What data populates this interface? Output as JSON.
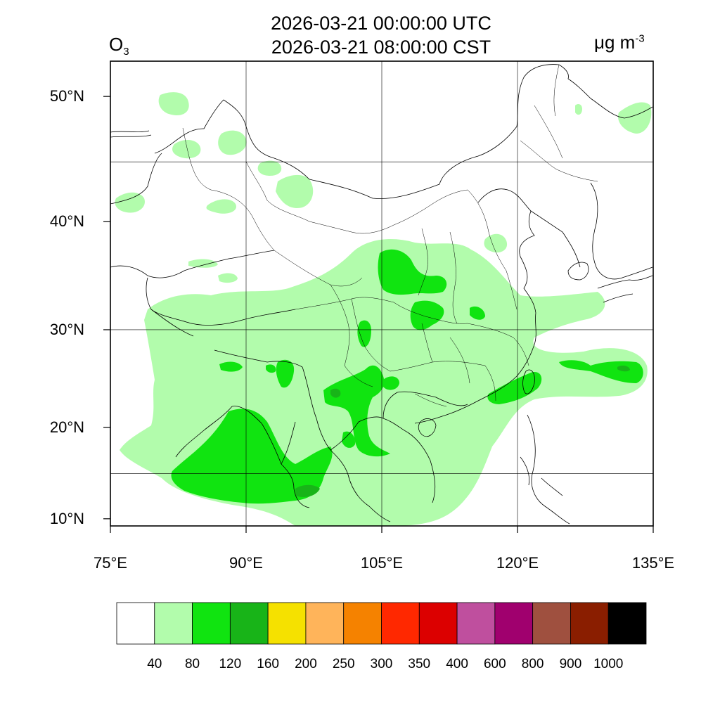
{
  "title": {
    "utc": "2026-03-21 00:00:00 UTC",
    "local": "2026-03-21 08:00:00 CST"
  },
  "variable": {
    "name": "O",
    "subscript": "3"
  },
  "unit": {
    "base": "μg m",
    "exponent": "-3"
  },
  "map": {
    "lon_range": [
      75,
      135
    ],
    "lat_range": [
      9.2,
      52.5
    ],
    "lat_ticks": [
      {
        "value": 10,
        "label": "10°N"
      },
      {
        "value": 20,
        "label": "20°N"
      },
      {
        "value": 30,
        "label": "30°N"
      },
      {
        "value": 40,
        "label": "40°N"
      },
      {
        "value": 50,
        "label": "50°N"
      }
    ],
    "lon_ticks": [
      {
        "value": 75,
        "label": "75°E"
      },
      {
        "value": 90,
        "label": "90°E"
      },
      {
        "value": 105,
        "label": "105°E"
      },
      {
        "value": 120,
        "label": "120°E"
      },
      {
        "value": 135,
        "label": "135°E"
      }
    ],
    "gridlines": {
      "lon": [
        90,
        105,
        120
      ],
      "lat": [
        15,
        30,
        45
      ]
    }
  },
  "colorbar": {
    "colors": [
      "#ffffff",
      "#b2fcac",
      "#10e410",
      "#18b418",
      "#f5e100",
      "#ffb45a",
      "#f58200",
      "#ff2800",
      "#dc0000",
      "#bf4f9e",
      "#a0006e",
      "#9f503f",
      "#8a1e00",
      "#000000"
    ],
    "labels": [
      "40",
      "80",
      "120",
      "160",
      "200",
      "250",
      "300",
      "350",
      "400",
      "600",
      "800",
      "900",
      "1000"
    ],
    "colors_named": {
      "light_green": "#b2fcac",
      "green": "#10e410",
      "dark_green": "#18b418"
    }
  }
}
